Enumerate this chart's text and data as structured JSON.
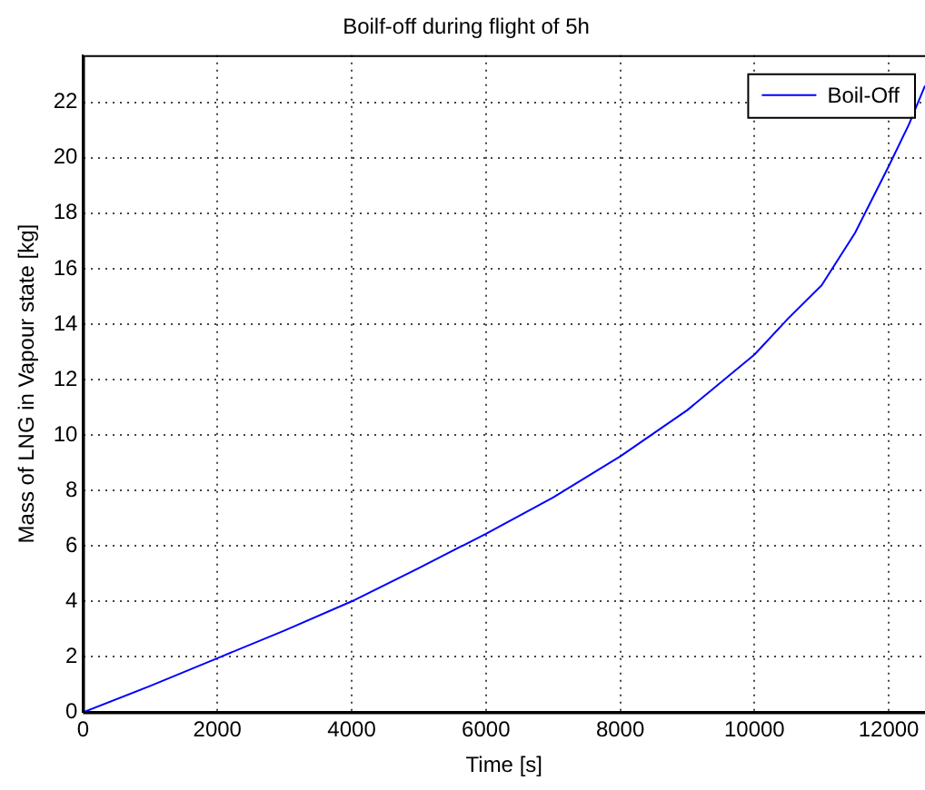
{
  "chart_data": {
    "type": "line",
    "title": "Boilf-off during flight of 5h",
    "xlabel": "Time [s]",
    "ylabel": "Mass of LNG in Vapour state [kg]",
    "xlim": [
      0,
      12540
    ],
    "ylim": [
      0,
      23.7
    ],
    "xticks": [
      0,
      2000,
      4000,
      6000,
      8000,
      10000,
      12000
    ],
    "yticks": [
      0,
      2,
      4,
      6,
      8,
      10,
      12,
      14,
      16,
      18,
      20,
      22
    ],
    "grid": true,
    "legend": "top right",
    "line_style": "solid",
    "marker": "none",
    "series": [
      {
        "name": "Boil-Off",
        "color": "#0000ff",
        "x": [
          0,
          1000,
          2000,
          3000,
          4000,
          5000,
          6000,
          7000,
          8000,
          9000,
          10000,
          10500,
          11000,
          11500,
          12000,
          12300,
          12540
        ],
        "values": [
          0,
          0.95,
          1.95,
          2.95,
          4.0,
          5.2,
          6.44,
          7.75,
          9.23,
          10.9,
          12.9,
          14.2,
          15.4,
          17.3,
          19.7,
          21.2,
          22.6
        ]
      }
    ]
  }
}
